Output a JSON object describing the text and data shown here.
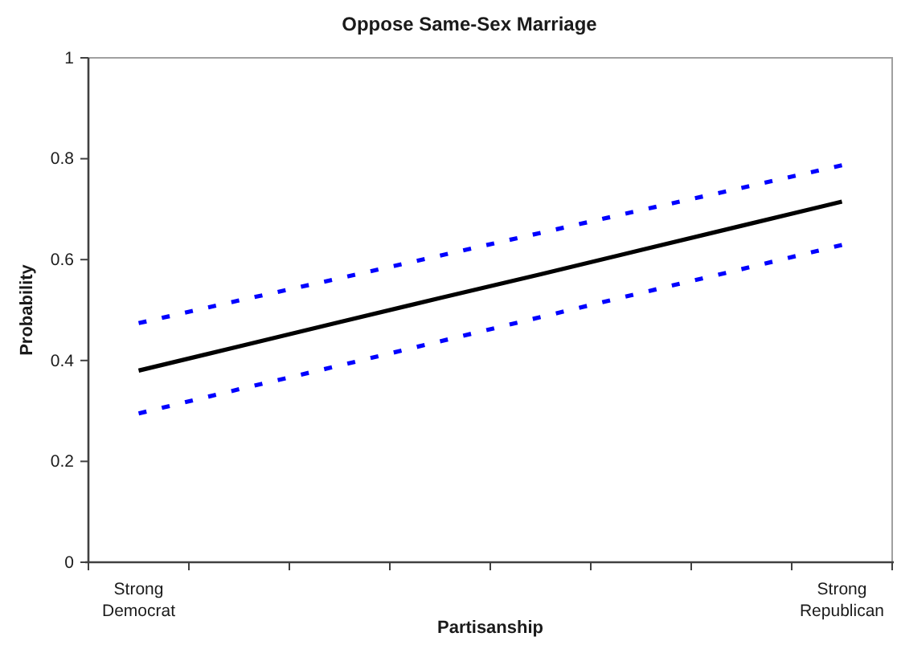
{
  "chart_data": {
    "type": "line",
    "title": "Oppose Same-Sex Marriage",
    "xlabel": "Partisanship",
    "ylabel": "Probability",
    "categories": [
      "Strong Democrat",
      null,
      null,
      null,
      null,
      null,
      null,
      "Strong Republican"
    ],
    "ylim": [
      0,
      1
    ],
    "yticks": [
      0,
      0.2,
      0.4,
      0.6,
      0.8,
      1
    ],
    "series": [
      {
        "color": "#000000",
        "line_style": "solid",
        "values": [
          0.38,
          0.428,
          0.476,
          0.524,
          0.571,
          0.619,
          0.667,
          0.715
        ]
      },
      {
        "color": "#0000ff",
        "line_style": "dashed",
        "values": [
          0.474,
          0.519,
          0.563,
          0.608,
          0.653,
          0.698,
          0.742,
          0.787
        ]
      },
      {
        "color": "#0000ff",
        "line_style": "dashed",
        "values": [
          0.295,
          0.343,
          0.39,
          0.438,
          0.486,
          0.534,
          0.581,
          0.629
        ]
      }
    ]
  }
}
